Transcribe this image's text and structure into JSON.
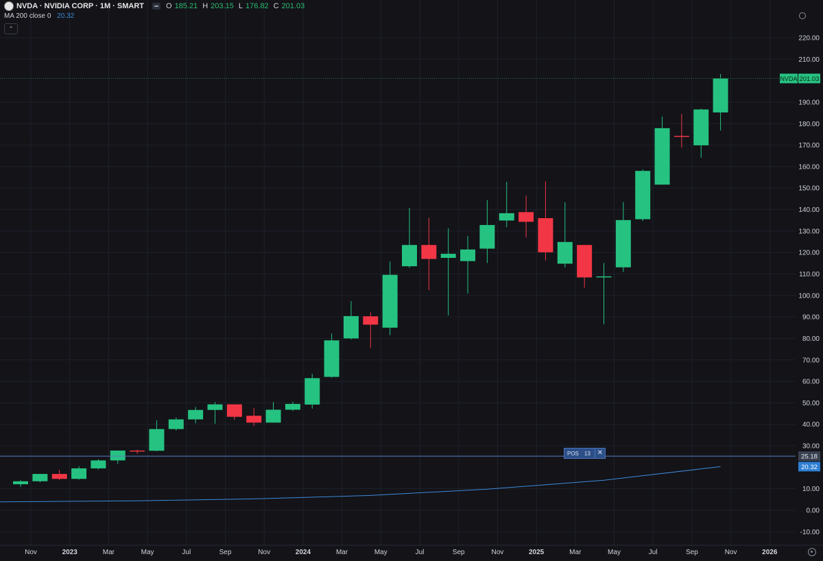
{
  "header": {
    "symbol_line": "NVDA · NVIDIA CORP · 1M · SMART",
    "ohlc": [
      {
        "label": "O",
        "value": "185.21"
      },
      {
        "label": "H",
        "value": "203.15"
      },
      {
        "label": "L",
        "value": "176.82"
      },
      {
        "label": "C",
        "value": "201.03"
      }
    ],
    "indicator": {
      "name": "MA 200 close 0",
      "value": "20.32"
    }
  },
  "colors": {
    "up": "#26c281",
    "down": "#f23645",
    "ma_line": "#3d8bd9",
    "position_line": "#5b7fc4",
    "background": "#131318",
    "grid": "#1f222b"
  },
  "price_tag": {
    "symbol": "NVDA",
    "price": "201.03"
  },
  "position": {
    "label": "POS",
    "qty": "13",
    "price": "25.18",
    "close_icon": "close-icon"
  },
  "ma_tag": "20.32",
  "chart_data": {
    "type": "candlestick",
    "title": "NVDA · NVIDIA CORP · 1M · SMART",
    "price_axis": {
      "ylim": [
        -15,
        222
      ],
      "ticks": [
        "220.00",
        "210.00",
        "190.00",
        "180.00",
        "170.00",
        "160.00",
        "150.00",
        "140.00",
        "130.00",
        "120.00",
        "110.00",
        "100.00",
        "90.00",
        "80.00",
        "70.00",
        "60.00",
        "50.00",
        "40.00",
        "30.00",
        "10.00",
        "0.00",
        "-10.00"
      ],
      "tick_values": [
        220,
        210,
        190,
        180,
        170,
        160,
        150,
        140,
        130,
        120,
        110,
        100,
        90,
        80,
        70,
        60,
        50,
        40,
        30,
        10,
        0,
        -10
      ]
    },
    "time_axis": {
      "labels": [
        "Nov",
        "2023",
        "Mar",
        "May",
        "Jul",
        "Sep",
        "Nov",
        "2024",
        "Mar",
        "May",
        "Jul",
        "Sep",
        "Nov",
        "2025",
        "Mar",
        "May",
        "Jul",
        "Sep",
        "Nov",
        "2026"
      ],
      "label_month_index": [
        0,
        2,
        4,
        6,
        8,
        10,
        12,
        14,
        16,
        18,
        20,
        22,
        24,
        26,
        28,
        30,
        32,
        34,
        36,
        38
      ]
    },
    "first_month": "2022-10",
    "candles": [
      {
        "m": "2022-10",
        "o": 12.1,
        "h": 14.0,
        "l": 10.8,
        "c": 13.5
      },
      {
        "m": "2022-11",
        "o": 13.5,
        "h": 17.0,
        "l": 13.0,
        "c": 16.9
      },
      {
        "m": "2022-12",
        "o": 16.9,
        "h": 18.8,
        "l": 14.0,
        "c": 14.6
      },
      {
        "m": "2023-01",
        "o": 14.6,
        "h": 20.5,
        "l": 14.2,
        "c": 19.5
      },
      {
        "m": "2023-02",
        "o": 19.5,
        "h": 23.8,
        "l": 19.0,
        "c": 23.2
      },
      {
        "m": "2023-03",
        "o": 23.2,
        "h": 27.8,
        "l": 21.5,
        "c": 27.8
      },
      {
        "m": "2023-04",
        "o": 27.8,
        "h": 28.2,
        "l": 26.2,
        "c": 27.7
      },
      {
        "m": "2023-05",
        "o": 27.7,
        "h": 41.9,
        "l": 27.5,
        "c": 37.8
      },
      {
        "m": "2023-06",
        "o": 37.8,
        "h": 43.2,
        "l": 37.1,
        "c": 42.3
      },
      {
        "m": "2023-07",
        "o": 42.3,
        "h": 48.1,
        "l": 40.5,
        "c": 46.7
      },
      {
        "m": "2023-08",
        "o": 46.7,
        "h": 50.4,
        "l": 40.3,
        "c": 49.3
      },
      {
        "m": "2023-09",
        "o": 49.3,
        "h": 49.3,
        "l": 42.1,
        "c": 43.5
      },
      {
        "m": "2023-10",
        "o": 44.0,
        "h": 47.7,
        "l": 39.2,
        "c": 40.8
      },
      {
        "m": "2023-11",
        "o": 40.8,
        "h": 50.4,
        "l": 40.8,
        "c": 46.8
      },
      {
        "m": "2023-12",
        "o": 46.8,
        "h": 50.5,
        "l": 46.2,
        "c": 49.5
      },
      {
        "m": "2024-01",
        "o": 49.2,
        "h": 63.5,
        "l": 47.3,
        "c": 61.5
      },
      {
        "m": "2024-02",
        "o": 62.1,
        "h": 82.3,
        "l": 61.7,
        "c": 79.1
      },
      {
        "m": "2024-03",
        "o": 80.0,
        "h": 97.4,
        "l": 79.5,
        "c": 90.4
      },
      {
        "m": "2024-04",
        "o": 90.3,
        "h": 92.2,
        "l": 75.6,
        "c": 86.4
      },
      {
        "m": "2024-05",
        "o": 85.0,
        "h": 115.8,
        "l": 81.5,
        "c": 109.6
      },
      {
        "m": "2024-06",
        "o": 113.6,
        "h": 140.8,
        "l": 112.9,
        "c": 123.5
      },
      {
        "m": "2024-07",
        "o": 123.5,
        "h": 136.2,
        "l": 102.5,
        "c": 117.0
      },
      {
        "m": "2024-08",
        "o": 117.5,
        "h": 131.3,
        "l": 90.7,
        "c": 119.4
      },
      {
        "m": "2024-09",
        "o": 116.0,
        "h": 127.7,
        "l": 100.9,
        "c": 121.4
      },
      {
        "m": "2024-10",
        "o": 121.8,
        "h": 144.4,
        "l": 115.1,
        "c": 132.8
      },
      {
        "m": "2024-11",
        "o": 134.9,
        "h": 152.9,
        "l": 131.8,
        "c": 138.3
      },
      {
        "m": "2024-12",
        "o": 138.8,
        "h": 146.5,
        "l": 126.9,
        "c": 134.3
      },
      {
        "m": "2025-01",
        "o": 136.0,
        "h": 153.1,
        "l": 116.3,
        "c": 120.1
      },
      {
        "m": "2025-02",
        "o": 114.8,
        "h": 143.4,
        "l": 113.0,
        "c": 124.9
      },
      {
        "m": "2025-03",
        "o": 123.5,
        "h": 123.5,
        "l": 103.6,
        "c": 108.4
      },
      {
        "m": "2025-04",
        "o": 108.5,
        "h": 115.1,
        "l": 86.6,
        "c": 108.9
      },
      {
        "m": "2025-05",
        "o": 113.1,
        "h": 143.5,
        "l": 110.9,
        "c": 135.1
      },
      {
        "m": "2025-06",
        "o": 135.5,
        "h": 158.7,
        "l": 134.6,
        "c": 158.0
      },
      {
        "m": "2025-07",
        "o": 151.6,
        "h": 183.3,
        "l": 151.6,
        "c": 177.9
      },
      {
        "m": "2025-08",
        "o": 174.3,
        "h": 184.5,
        "l": 168.8,
        "c": 174.2
      },
      {
        "m": "2025-09",
        "o": 169.9,
        "h": 187.0,
        "l": 164.1,
        "c": 186.6
      },
      {
        "m": "2025-10",
        "o": 185.21,
        "h": 203.15,
        "l": 176.82,
        "c": 201.03
      }
    ],
    "ma_200": [
      {
        "m": "2022-10",
        "v": 3.9
      },
      {
        "m": "2023-04",
        "v": 4.4
      },
      {
        "m": "2023-10",
        "v": 5.3
      },
      {
        "m": "2024-04",
        "v": 6.9
      },
      {
        "m": "2024-10",
        "v": 9.8
      },
      {
        "m": "2025-04",
        "v": 14.0
      },
      {
        "m": "2025-10",
        "v": 20.32
      }
    ],
    "position_line": 25.18,
    "last_price_line": 201.03,
    "grid": true
  }
}
